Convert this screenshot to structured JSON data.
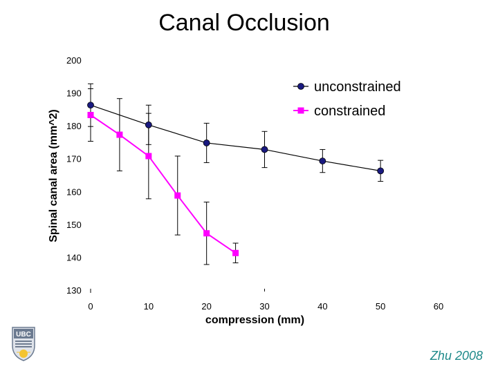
{
  "slide": {
    "title": "Canal Occlusion",
    "credit": "Zhu 2008",
    "logo_text": "UBC"
  },
  "colors": {
    "unconstrained": "#1a1a80",
    "constrained": "#ff00ff",
    "line_unconstrained": "#000000",
    "error_bar": "#000000",
    "credit": "#1f8a8a"
  },
  "chart_data": {
    "type": "line",
    "title": "",
    "xlabel": "compression (mm)",
    "ylabel": "Spinal canal area (mm^2)",
    "xlim": [
      0,
      60
    ],
    "ylim": [
      130,
      200
    ],
    "x_ticks": [
      "0",
      "10",
      "20",
      "30",
      "40",
      "50",
      "60"
    ],
    "y_ticks": [
      "130",
      "140",
      "150",
      "160",
      "170",
      "180",
      "190",
      "200"
    ],
    "grid": false,
    "legend_position": "top-right",
    "series": [
      {
        "name": "unconstrained",
        "marker": "circle",
        "x": [
          0,
          10,
          20,
          30,
          40,
          50
        ],
        "y": [
          186.5,
          180.5,
          175,
          173,
          169.5,
          166.5
        ],
        "error": [
          6.5,
          6,
          6,
          5.5,
          3.5,
          3.2
        ]
      },
      {
        "name": "constrained",
        "marker": "square",
        "x": [
          0,
          5,
          10,
          15,
          20,
          25
        ],
        "y": [
          183.5,
          177.5,
          171,
          159,
          147.5,
          141.5
        ],
        "error": [
          8,
          11,
          13,
          12,
          9.5,
          3
        ]
      }
    ]
  }
}
